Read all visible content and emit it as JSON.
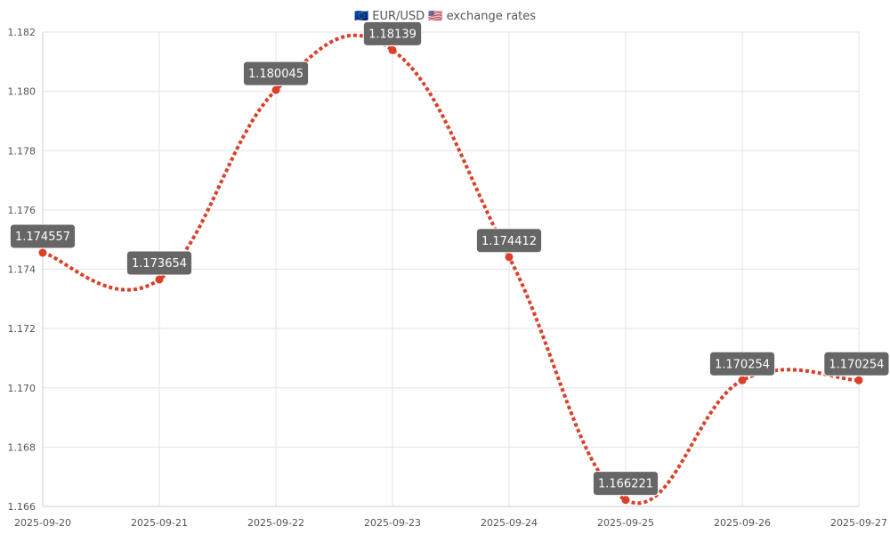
{
  "chart_data": {
    "type": "line",
    "title": "🇪🇺 EUR/USD 🇺🇸 exchange rates",
    "xlabel": "",
    "ylabel": "",
    "x": [
      "2025-09-20",
      "2025-09-21",
      "2025-09-22",
      "2025-09-23",
      "2025-09-24",
      "2025-09-25",
      "2025-09-26",
      "2025-09-27"
    ],
    "series": [
      {
        "values": [
          1.174557,
          1.173654,
          1.180045,
          1.18139,
          1.174412,
          1.166221,
          1.170254,
          1.170254
        ],
        "data_labels": [
          "1.174557",
          "1.173654",
          "1.180045",
          "1.18139",
          "1.174412",
          "1.166221",
          "1.170254",
          "1.170254"
        ]
      }
    ],
    "y_ticks": [
      "1.166",
      "1.168",
      "1.170",
      "1.172",
      "1.174",
      "1.176",
      "1.178",
      "1.180",
      "1.182"
    ],
    "ylim": [
      1.166,
      1.182
    ],
    "grid": true,
    "line_style": "dotted",
    "smooth": true,
    "legend": "none",
    "colors": {
      "line": "#dc3f29",
      "point": "#dc3f29",
      "label_bg": "#666666",
      "label_text": "#ffffff",
      "grid": "#e3e3e3",
      "axis_text": "#555555"
    }
  }
}
